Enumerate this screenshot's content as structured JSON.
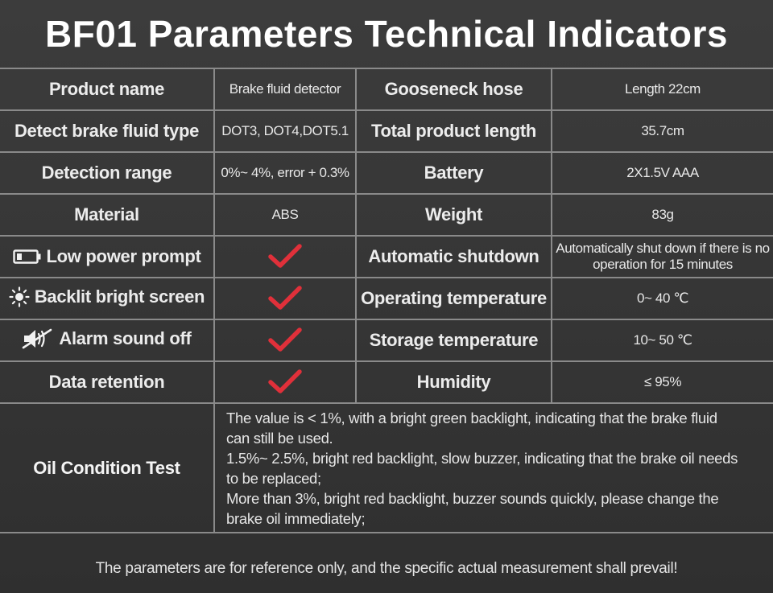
{
  "title": "BF01 Parameters Technical Indicators",
  "rows": [
    {
      "label_left": "Product name",
      "value_left": "Brake fluid detector",
      "label_right": "Gooseneck hose",
      "value_right": "Length 22cm"
    },
    {
      "label_left": "Detect brake fluid type",
      "value_left": "DOT3, DOT4,DOT5.1",
      "label_right": "Total product length",
      "value_right": "35.7cm"
    },
    {
      "label_left": "Detection range",
      "value_left": "0%~ 4%, error + 0.3%",
      "label_right": "Battery",
      "value_right": "2X1.5V AAA"
    },
    {
      "label_left": "Material",
      "value_left": "ABS",
      "label_right": "Weight",
      "value_right": "83g"
    },
    {
      "label_left": "Low power prompt",
      "value_left_icon": "red-checkmark-icon",
      "label_right": "Automatic shutdown",
      "value_right": "Automatically shut down if there is no operation for 15 minutes"
    },
    {
      "label_left": "Backlit bright screen",
      "value_left_icon": "red-checkmark-icon",
      "label_right": "Operating temperature",
      "value_right": "0~ 40 ℃"
    },
    {
      "label_left": "Alarm sound off",
      "value_left_icon": "red-checkmark-icon",
      "label_right": "Storage temperature",
      "value_right": "10~ 50 ℃"
    },
    {
      "label_left": "Data retention",
      "value_left_icon": "red-checkmark-icon",
      "label_right": "Humidity",
      "value_right": "≤ 95%"
    }
  ],
  "row_icons": {
    "low_power": "battery-low-icon",
    "backlit": "sun-icon",
    "alarm": "speaker-muted-icon"
  },
  "oil_condition": {
    "label": "Oil Condition Test",
    "lines": [
      "The value is < 1%, with a bright green backlight, indicating that the brake fluid",
      "can still be used.",
      "1.5%~ 2.5%, bright red backlight, slow buzzer, indicating that the brake oil needs",
      "to be replaced;",
      "More than 3%, bright red backlight, buzzer sounds quickly, please change the",
      "brake oil immediately;"
    ]
  },
  "footer": "The parameters are for reference only, and the specific actual measurement shall prevail!",
  "colors": {
    "background": "#383838",
    "grid": "#8a8a8a",
    "check": "#e0303a"
  }
}
